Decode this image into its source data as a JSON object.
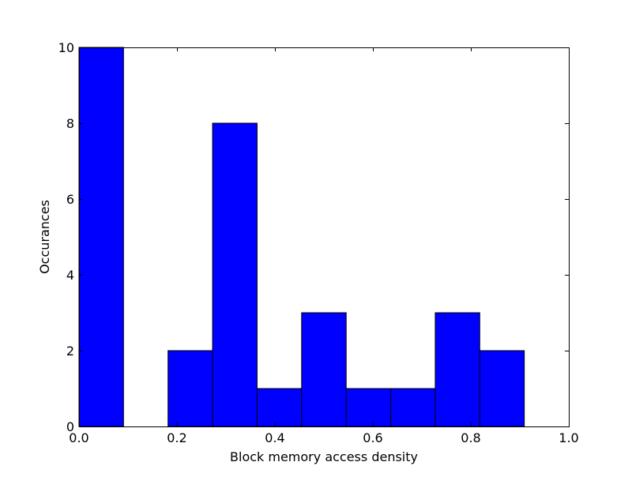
{
  "chart_data": {
    "type": "histogram",
    "title": "",
    "xlabel": "Block memory access density",
    "ylabel": "Occurances",
    "xlim": [
      0.0,
      1.0
    ],
    "ylim": [
      0,
      10
    ],
    "grid": false,
    "bar_color": "#0000ff",
    "edge_color": "#000000",
    "bins": [
      {
        "start": 0.0,
        "end": 0.0909,
        "count": 10
      },
      {
        "start": 0.0909,
        "end": 0.1818,
        "count": 0
      },
      {
        "start": 0.1818,
        "end": 0.2727,
        "count": 2
      },
      {
        "start": 0.2727,
        "end": 0.3636,
        "count": 8
      },
      {
        "start": 0.3636,
        "end": 0.4545,
        "count": 1
      },
      {
        "start": 0.4545,
        "end": 0.5455,
        "count": 3
      },
      {
        "start": 0.5455,
        "end": 0.6364,
        "count": 1
      },
      {
        "start": 0.6364,
        "end": 0.7273,
        "count": 1
      },
      {
        "start": 0.7273,
        "end": 0.8182,
        "count": 3
      },
      {
        "start": 0.8182,
        "end": 0.9091,
        "count": 2
      }
    ],
    "x_ticks": [
      {
        "value": 0.0,
        "label": "0.0"
      },
      {
        "value": 0.2,
        "label": "0.2"
      },
      {
        "value": 0.4,
        "label": "0.4"
      },
      {
        "value": 0.6,
        "label": "0.6"
      },
      {
        "value": 0.8,
        "label": "0.8"
      },
      {
        "value": 1.0,
        "label": "1.0"
      }
    ],
    "y_ticks": [
      {
        "value": 0,
        "label": "0"
      },
      {
        "value": 2,
        "label": "2"
      },
      {
        "value": 4,
        "label": "4"
      },
      {
        "value": 6,
        "label": "6"
      },
      {
        "value": 8,
        "label": "8"
      },
      {
        "value": 10,
        "label": "10"
      }
    ]
  }
}
